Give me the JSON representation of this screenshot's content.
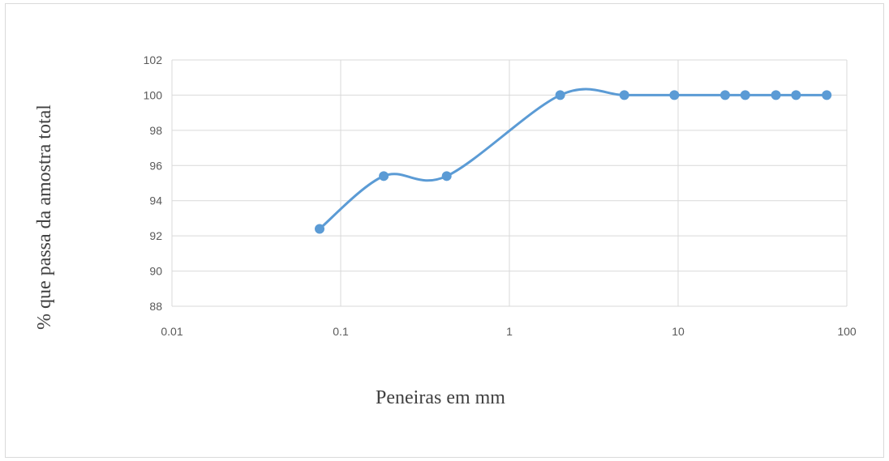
{
  "chart_data": {
    "type": "line",
    "xscale": "log",
    "xlabel": "Peneiras em mm",
    "ylabel": "% que passa da amostra total",
    "xlim": [
      0.01,
      100
    ],
    "ylim": [
      88,
      102
    ],
    "x_ticks": [
      0.01,
      0.1,
      1,
      10,
      100
    ],
    "x_tick_labels": [
      "0.01",
      "0.1",
      "1",
      "10",
      "100"
    ],
    "y_ticks": [
      88,
      90,
      92,
      94,
      96,
      98,
      100,
      102
    ],
    "y_tick_labels": [
      "88",
      "90",
      "92",
      "94",
      "96",
      "98",
      "100",
      "102"
    ],
    "grid": true,
    "line_style": "smoothed",
    "series": [
      {
        "color": "#5b9bd5",
        "x": [
          0.075,
          0.18,
          0.425,
          2,
          4.8,
          9.5,
          19,
          25,
          38,
          50,
          76
        ],
        "y": [
          92.4,
          95.4,
          95.4,
          100,
          100,
          100,
          100,
          100,
          100,
          100,
          100
        ]
      }
    ]
  },
  "colors": {
    "series": "#5b9bd5",
    "grid": "#d9d9d9",
    "text": "#595959"
  }
}
